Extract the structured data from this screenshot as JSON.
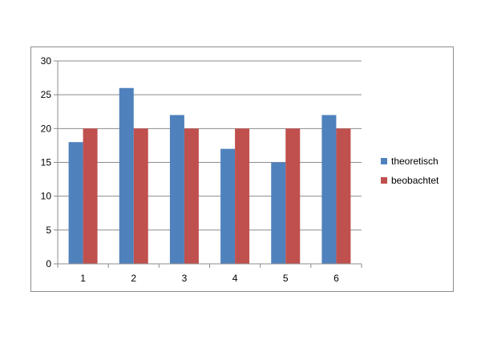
{
  "chart_data": {
    "type": "bar",
    "categories": [
      "1",
      "2",
      "3",
      "4",
      "5",
      "6"
    ],
    "series": [
      {
        "name": "theoretisch",
        "color": "#4f81bd",
        "values": [
          18,
          26,
          22,
          17,
          15,
          22
        ]
      },
      {
        "name": "beobachtet",
        "color": "#c0504d",
        "values": [
          20,
          20,
          20,
          20,
          20,
          20
        ]
      }
    ],
    "ylim": [
      0,
      30
    ],
    "yticks": [
      "0",
      "5",
      "10",
      "15",
      "20",
      "25",
      "30"
    ],
    "grid": true,
    "legend_position": "right"
  }
}
